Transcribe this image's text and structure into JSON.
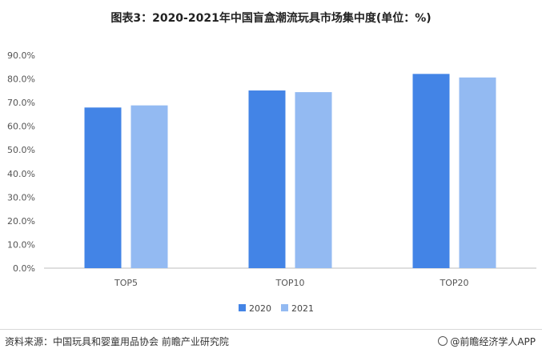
{
  "title": "图表3：2020-2021年中国盲盒潮流玩具市场集中度(单位：%)",
  "source": "资料来源：中国玩具和婴童用品协会 前瞻产业研究院",
  "brand": "@前瞻经济学人APP",
  "colors": {
    "2020": "#4384e6",
    "2021": "#93baf2"
  },
  "chart_data": {
    "type": "bar",
    "title": "图表3：2020-2021年中国盲盒潮流玩具市场集中度(单位：%)",
    "categories": [
      "TOP5",
      "TOP10",
      "TOP20"
    ],
    "series": [
      {
        "name": "2020",
        "values": [
          67.9,
          75.1,
          82.1
        ]
      },
      {
        "name": "2021",
        "values": [
          68.8,
          74.4,
          80.6
        ]
      }
    ],
    "ylim": [
      0,
      90
    ],
    "yticks": [
      "0.0%",
      "10.0%",
      "20.0%",
      "30.0%",
      "40.0%",
      "50.0%",
      "60.0%",
      "70.0%",
      "80.0%",
      "90.0%"
    ],
    "xlabel": "",
    "ylabel": "",
    "grid": false,
    "legend": "bottom"
  }
}
